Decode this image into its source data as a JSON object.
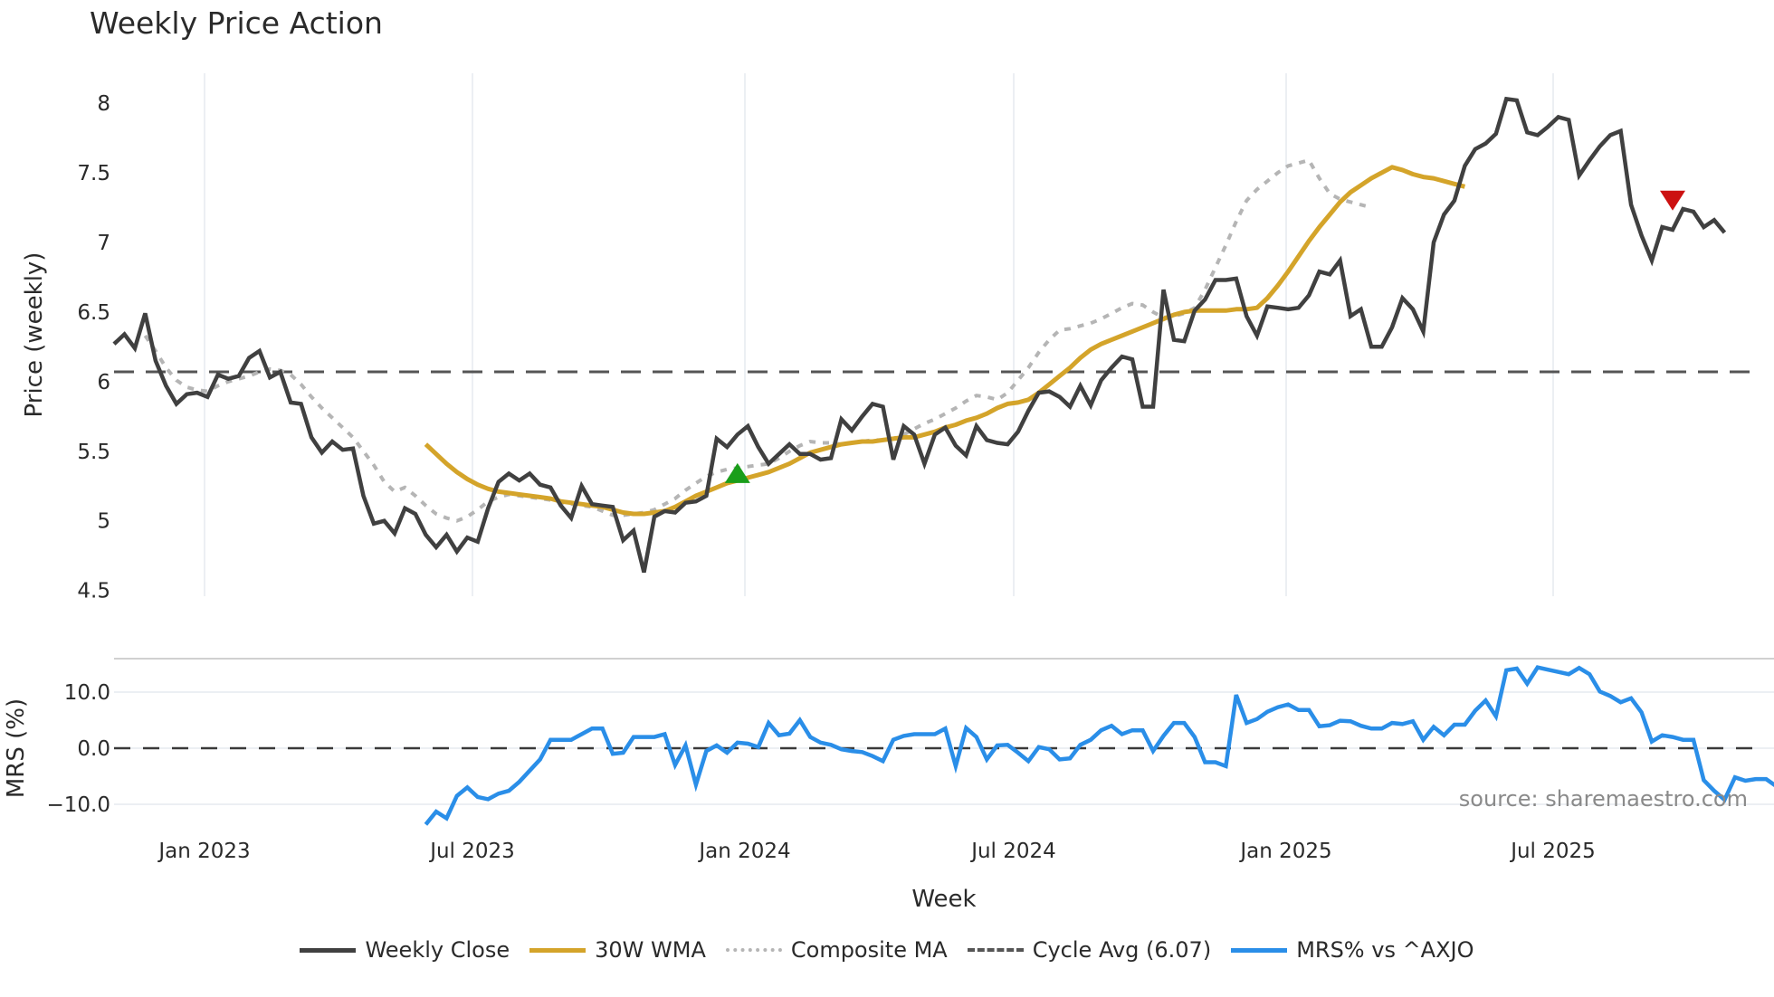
{
  "title": "Weekly Price Action",
  "price_axis": {
    "label": "Price (weekly)",
    "ticks": [
      "8",
      "7.5",
      "7",
      "6.5",
      "6",
      "5.5",
      "5",
      "4.5"
    ]
  },
  "mrs_axis": {
    "label": "MRS (%)",
    "ticks": [
      "10.0",
      "0.0",
      "−10.0"
    ]
  },
  "x_axis": {
    "label": "Week",
    "ticks": [
      "Jan 2023",
      "Jul 2023",
      "Jan 2024",
      "Jul 2024",
      "Jan 2025",
      "Jul 2025"
    ]
  },
  "source_text": "source: sharemaestro.com",
  "legend": [
    {
      "label": "Weekly Close",
      "color": "#404040",
      "style": "solid"
    },
    {
      "label": "30W WMA",
      "color": "#d4a42a",
      "style": "solid"
    },
    {
      "label": "Composite MA",
      "color": "#b5b5b5",
      "style": "dotted"
    },
    {
      "label": "Cycle Avg (6.07)",
      "color": "#555555",
      "style": "dashed"
    },
    {
      "label": "MRS% vs ^AXJO",
      "color": "#2a8ee8",
      "style": "solid"
    }
  ],
  "colors": {
    "close": "#404040",
    "wma": "#d4a42a",
    "composite": "#b5b5b5",
    "cycle": "#555555",
    "mrs": "#2a8ee8",
    "buy_marker": "#1a9e1a",
    "sell_marker": "#cc1111",
    "grid": "#eceff3"
  },
  "chart_data": [
    {
      "type": "line",
      "title": "Weekly Price Action",
      "xlabel": "Week",
      "ylabel": "Price (weekly)",
      "ylim": [
        4.5,
        8.2
      ],
      "grid": true,
      "legend_position": "bottom",
      "x_ticks": [
        "Jan 2023",
        "Jul 2023",
        "Jan 2024",
        "Jul 2024",
        "Jan 2025",
        "Jul 2025"
      ],
      "x_start_week_offset": -8.7,
      "cycle_avg": 6.07,
      "series": [
        {
          "name": "Weekly Close",
          "values": [
            6.27,
            6.34,
            6.24,
            6.49,
            6.15,
            5.97,
            5.84,
            5.91,
            5.92,
            5.89,
            6.05,
            6.02,
            6.04,
            6.17,
            6.22,
            6.03,
            6.07,
            5.85,
            5.84,
            5.6,
            5.49,
            5.57,
            5.51,
            5.52,
            5.18,
            4.98,
            5.0,
            4.91,
            5.09,
            5.05,
            4.9,
            4.81,
            4.9,
            4.78,
            4.88,
            4.85,
            5.09,
            5.28,
            5.34,
            5.29,
            5.34,
            5.26,
            5.24,
            5.11,
            5.02,
            5.25,
            5.12,
            5.11,
            5.1,
            4.86,
            4.93,
            4.63,
            5.03,
            5.07,
            5.06,
            5.13,
            5.14,
            5.18,
            5.59,
            5.53,
            5.62,
            5.68,
            5.53,
            5.41,
            5.48,
            5.55,
            5.48,
            5.48,
            5.44,
            5.45,
            5.73,
            5.65,
            5.75,
            5.84,
            5.82,
            5.44,
            5.68,
            5.62,
            5.41,
            5.62,
            5.67,
            5.54,
            5.47,
            5.68,
            5.58,
            5.56,
            5.55,
            5.64,
            5.79,
            5.92,
            5.93,
            5.89,
            5.82,
            5.97,
            5.83,
            6.01,
            6.1,
            6.18,
            6.16,
            5.82,
            5.82,
            6.66,
            6.3,
            6.29,
            6.51,
            6.59,
            6.73,
            6.73,
            6.74,
            6.47,
            6.33,
            6.54,
            6.53,
            6.52,
            6.53,
            6.62,
            6.79,
            6.77,
            6.87,
            6.47,
            6.52,
            6.25,
            6.25,
            6.39,
            6.6,
            6.52,
            6.36,
            7.0,
            7.2,
            7.3,
            7.55,
            7.67,
            7.71,
            7.78,
            8.03,
            8.02,
            7.79,
            7.77,
            7.83,
            7.9,
            7.88,
            7.48,
            7.59,
            7.69,
            7.77,
            7.8,
            7.27,
            7.05,
            6.87,
            7.11,
            7.09,
            7.24,
            7.22,
            7.11,
            7.16,
            7.07
          ]
        },
        {
          "name": "30W WMA",
          "start_index": 30,
          "values": [
            5.55,
            5.48,
            5.41,
            5.35,
            5.3,
            5.26,
            5.23,
            5.21,
            5.2,
            5.19,
            5.18,
            5.17,
            5.16,
            5.14,
            5.13,
            5.12,
            5.11,
            5.1,
            5.08,
            5.06,
            5.05,
            5.05,
            5.06,
            5.07,
            5.1,
            5.14,
            5.18,
            5.21,
            5.24,
            5.27,
            5.29,
            5.31,
            5.33,
            5.35,
            5.38,
            5.41,
            5.45,
            5.49,
            5.51,
            5.53,
            5.55,
            5.56,
            5.57,
            5.57,
            5.58,
            5.59,
            5.6,
            5.6,
            5.62,
            5.64,
            5.67,
            5.69,
            5.72,
            5.74,
            5.77,
            5.81,
            5.84,
            5.85,
            5.87,
            5.92,
            5.98,
            6.04,
            6.1,
            6.17,
            6.23,
            6.27,
            6.3,
            6.33,
            6.36,
            6.39,
            6.42,
            6.45,
            6.48,
            6.5,
            6.51,
            6.51,
            6.51,
            6.51,
            6.52,
            6.52,
            6.53,
            6.6,
            6.69,
            6.79,
            6.9,
            7.01,
            7.11,
            7.2,
            7.29,
            7.36,
            7.41,
            7.46,
            7.5,
            7.54,
            7.52,
            7.49,
            7.47,
            7.46,
            7.44,
            7.42,
            7.4
          ]
        },
        {
          "name": "Composite MA",
          "start_index": 3,
          "values": [
            6.33,
            6.22,
            6.1,
            6.01,
            5.96,
            5.94,
            5.93,
            5.97,
            6.0,
            6.02,
            6.04,
            6.07,
            6.09,
            6.08,
            6.05,
            5.98,
            5.89,
            5.81,
            5.74,
            5.67,
            5.6,
            5.5,
            5.4,
            5.28,
            5.21,
            5.24,
            5.18,
            5.11,
            5.05,
            5.02,
            5.0,
            5.03,
            5.08,
            5.14,
            5.17,
            5.19,
            5.18,
            5.17,
            5.16,
            5.15,
            5.13,
            5.12,
            5.11,
            5.1,
            5.07,
            5.04,
            5.04,
            5.05,
            5.06,
            5.08,
            5.12,
            5.16,
            5.22,
            5.27,
            5.32,
            5.35,
            5.37,
            5.38,
            5.39,
            5.4,
            5.41,
            5.45,
            5.5,
            5.54,
            5.57,
            5.56,
            5.56,
            5.55,
            5.56,
            5.57,
            5.58,
            5.58,
            5.59,
            5.62,
            5.66,
            5.7,
            5.73,
            5.77,
            5.81,
            5.86,
            5.9,
            5.89,
            5.87,
            5.92,
            6.01,
            6.1,
            6.21,
            6.3,
            6.37,
            6.38,
            6.4,
            6.42,
            6.45,
            6.49,
            6.53,
            6.56,
            6.55,
            6.5,
            6.46,
            6.47,
            6.49,
            6.53,
            6.66,
            6.82,
            6.98,
            7.15,
            7.3,
            7.38,
            7.44,
            7.5,
            7.55,
            7.57,
            7.59,
            7.46,
            7.35,
            7.31,
            7.29,
            7.27,
            7.25
          ]
        },
        {
          "name": "Buy signal",
          "marker": "triangle-up",
          "points": [
            {
              "index": 60,
              "value": 5.33
            }
          ]
        },
        {
          "name": "Sell signal",
          "marker": "triangle-down",
          "points": [
            {
              "index": 150,
              "value": 7.3
            }
          ]
        }
      ]
    },
    {
      "type": "line",
      "title": "",
      "xlabel": "Week",
      "ylabel": "MRS (%)",
      "ylim": [
        -14,
        16
      ],
      "grid": true,
      "zero_line": 0,
      "series": [
        {
          "name": "MRS% vs ^AXJO",
          "start_index": 30,
          "values": [
            -13.6,
            -11.3,
            -12.5,
            -8.5,
            -7.0,
            -8.7,
            -9.1,
            -8.1,
            -7.6,
            -6.0,
            -4.0,
            -2.0,
            1.5,
            1.5,
            1.5,
            2.5,
            3.5,
            3.5,
            -1.0,
            -0.8,
            2.0,
            2.0,
            2.0,
            2.5,
            -3.0,
            0.5,
            -6.5,
            -0.5,
            0.5,
            -0.8,
            1.0,
            0.8,
            0.2,
            4.5,
            2.3,
            2.6,
            5.0,
            2.0,
            1.0,
            0.6,
            -0.2,
            -0.5,
            -0.7,
            -1.4,
            -2.3,
            1.5,
            2.2,
            2.5,
            2.5,
            2.5,
            3.5,
            -3.2,
            3.6,
            2.0,
            -2.0,
            0.5,
            0.6,
            -0.8,
            -2.3,
            0.2,
            -0.2,
            -2.0,
            -1.8,
            0.6,
            1.5,
            3.2,
            4.0,
            2.5,
            3.2,
            3.2,
            -0.5,
            2.2,
            4.5,
            4.5,
            2.0,
            -2.5,
            -2.5,
            -3.2,
            9.5,
            4.5,
            5.2,
            6.5,
            7.3,
            7.8,
            6.8,
            6.8,
            3.9,
            4.1,
            4.9,
            4.8,
            4.0,
            3.5,
            3.5,
            4.5,
            4.3,
            4.8,
            1.5,
            3.8,
            2.3,
            4.2,
            4.2,
            6.7,
            8.5,
            5.7,
            13.9,
            14.2,
            11.5,
            14.4,
            14.0,
            13.6,
            13.2,
            14.3,
            13.2,
            10.1,
            9.3,
            8.2,
            8.9,
            6.4,
            1.2,
            2.3,
            2.0,
            1.5,
            1.5,
            -5.7,
            -7.6,
            -9.2,
            -5.2,
            -5.8,
            -5.5,
            -5.5,
            -6.8,
            -7.0,
            -7.0
          ]
        }
      ],
      "annotation": "source: sharemaestro.com"
    }
  ]
}
